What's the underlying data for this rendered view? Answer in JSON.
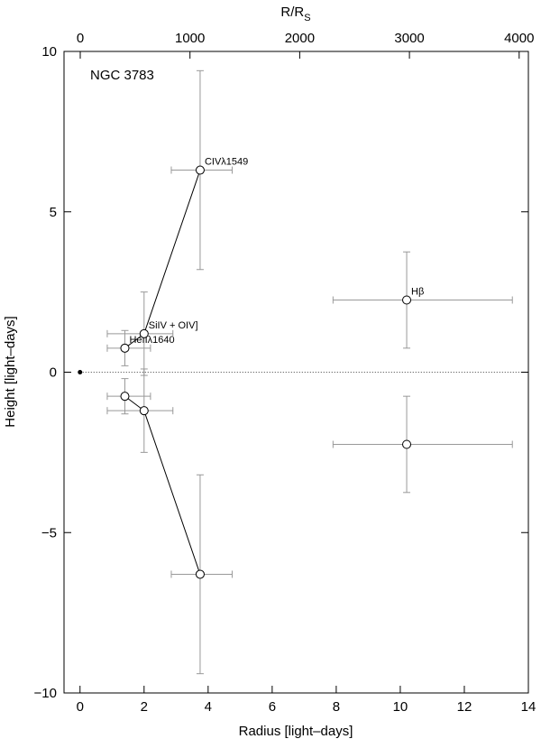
{
  "chart_data": {
    "type": "scatter",
    "title": "NGC 3783",
    "xlabel": "Radius  [light–days]",
    "ylabel": "Height  [light–days]",
    "x2label": "R/R",
    "x2label_sub": "S",
    "xlim": [
      -0.5,
      14
    ],
    "xticks": [
      0,
      2,
      4,
      6,
      8,
      10,
      12,
      14
    ],
    "x2lim": [
      -148,
      4084
    ],
    "x2ticks": [
      0,
      1000,
      2000,
      3000,
      4000
    ],
    "ylim": [
      -10,
      10
    ],
    "yticks": [
      {
        "value": -10,
        "label": "−10"
      },
      {
        "value": -5,
        "label": "−5"
      },
      0,
      5,
      10
    ],
    "hline": 0,
    "origin_point": {
      "x": 0,
      "y": 0
    },
    "connected_series": [
      0,
      1,
      2
    ],
    "series": [
      {
        "name": "HeIIλ1640",
        "x": [
          1.4,
          1.4
        ],
        "values": [
          0.75,
          -0.75
        ],
        "xerr": [
          [
            0.55,
            0.8
          ],
          [
            0.55,
            0.8
          ]
        ],
        "yerr": [
          0.55,
          0.55
        ]
      },
      {
        "name": "SiIV + OIV]",
        "x": [
          2.0,
          2.0
        ],
        "values": [
          1.2,
          -1.2
        ],
        "xerr": [
          [
            1.15,
            0.9
          ],
          [
            1.15,
            0.9
          ]
        ],
        "yerr": [
          1.3,
          1.3
        ]
      },
      {
        "name": "CIVλ1549",
        "x": [
          3.75,
          3.75
        ],
        "values": [
          6.3,
          -6.3
        ],
        "xerr": [
          [
            0.9,
            1.0
          ],
          [
            0.9,
            1.0
          ]
        ],
        "yerr": [
          3.1,
          3.1
        ]
      },
      {
        "name": "Hβ",
        "x": [
          10.2,
          10.2
        ],
        "values": [
          2.25,
          -2.25
        ],
        "xerr": [
          [
            2.3,
            3.3
          ],
          [
            2.3,
            3.3
          ]
        ],
        "yerr": [
          1.5,
          1.5
        ]
      }
    ]
  }
}
